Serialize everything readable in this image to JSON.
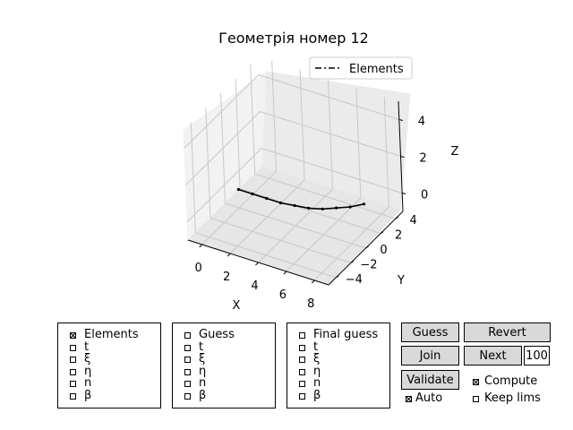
{
  "title": "Геометрія номер 12",
  "chart_data": {
    "type": "line3d",
    "legend": "Elements",
    "legend_position": "top-right",
    "xlabel": "X",
    "ylabel": "Y",
    "zlabel": "Z",
    "xticks": [
      "0",
      "2",
      "4",
      "6",
      "8"
    ],
    "yticks": [
      "4",
      "2",
      "0",
      "−2",
      "−4"
    ],
    "zticks": [
      "4",
      "2",
      "0"
    ],
    "xlim": [
      -1,
      9
    ],
    "ylim": [
      -5,
      5
    ],
    "zlim": [
      -1,
      5
    ],
    "series": [
      {
        "name": "Elements",
        "x": [
          0,
          1,
          2,
          3,
          4,
          5,
          6,
          7,
          8,
          9
        ],
        "y": [
          0,
          0,
          0,
          0,
          0,
          0,
          0,
          0,
          0,
          0
        ],
        "z": [
          0,
          0,
          0,
          0,
          0.1,
          0.2,
          0.4,
          0.7,
          1.0,
          1.4
        ]
      }
    ],
    "grid": true
  },
  "panels": [
    {
      "items": [
        "Elements",
        "t",
        "ξ",
        "η",
        "n",
        "β"
      ],
      "checked": [
        true,
        false,
        false,
        false,
        false,
        false
      ]
    },
    {
      "items": [
        "Guess",
        "t",
        "ξ",
        "η",
        "n",
        "β"
      ],
      "checked": [
        false,
        false,
        false,
        false,
        false,
        false
      ]
    },
    {
      "items": [
        "Final guess",
        "t",
        "ξ",
        "η",
        "n",
        "β"
      ],
      "checked": [
        false,
        false,
        false,
        false,
        false,
        false
      ]
    }
  ],
  "buttons": {
    "guess": "Guess",
    "revert": "Revert",
    "join": "Join",
    "next": "Next",
    "validate": "Validate"
  },
  "count_value": "100",
  "options": {
    "compute": {
      "label": "Compute",
      "checked": true
    },
    "auto": {
      "label": "Auto",
      "checked": true
    },
    "keep_lims": {
      "label": "Keep lims",
      "checked": false
    }
  }
}
